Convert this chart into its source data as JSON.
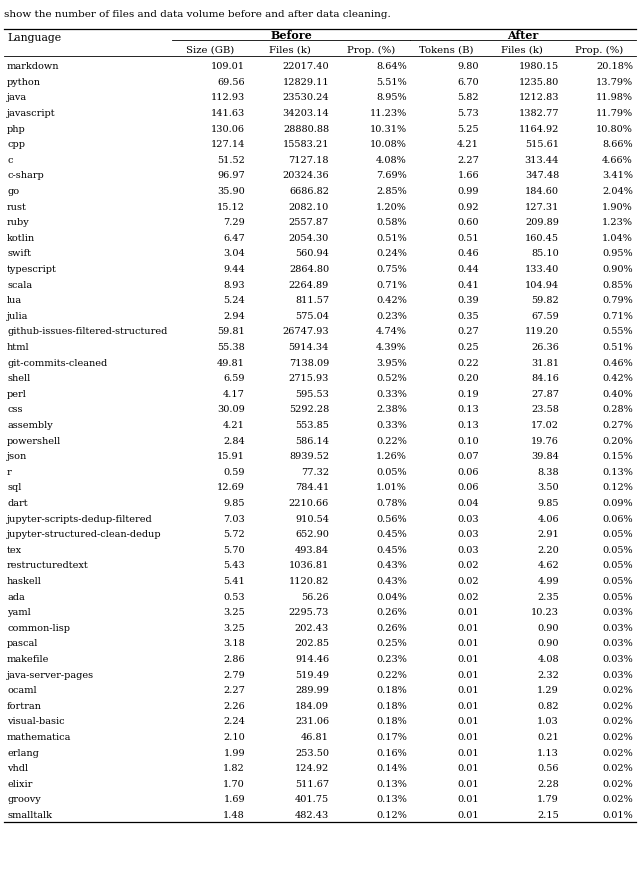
{
  "caption": "show the number of files and data volume before and after data cleaning.",
  "first_col_header": "Language",
  "before_header": "Before",
  "after_header": "After",
  "sub_headers": [
    "Size (GB)",
    "Files (k)",
    "Prop. (%)",
    "Tokens (B)",
    "Files (k)",
    "Prop. (%)"
  ],
  "rows": [
    [
      "markdown",
      "109.01",
      "22017.40",
      "8.64%",
      "9.80",
      "1980.15",
      "20.18%"
    ],
    [
      "python",
      "69.56",
      "12829.11",
      "5.51%",
      "6.70",
      "1235.80",
      "13.79%"
    ],
    [
      "java",
      "112.93",
      "23530.24",
      "8.95%",
      "5.82",
      "1212.83",
      "11.98%"
    ],
    [
      "javascript",
      "141.63",
      "34203.14",
      "11.23%",
      "5.73",
      "1382.77",
      "11.79%"
    ],
    [
      "php",
      "130.06",
      "28880.88",
      "10.31%",
      "5.25",
      "1164.92",
      "10.80%"
    ],
    [
      "cpp",
      "127.14",
      "15583.21",
      "10.08%",
      "4.21",
      "515.61",
      "8.66%"
    ],
    [
      "c",
      "51.52",
      "7127.18",
      "4.08%",
      "2.27",
      "313.44",
      "4.66%"
    ],
    [
      "c-sharp",
      "96.97",
      "20324.36",
      "7.69%",
      "1.66",
      "347.48",
      "3.41%"
    ],
    [
      "go",
      "35.90",
      "6686.82",
      "2.85%",
      "0.99",
      "184.60",
      "2.04%"
    ],
    [
      "rust",
      "15.12",
      "2082.10",
      "1.20%",
      "0.92",
      "127.31",
      "1.90%"
    ],
    [
      "ruby",
      "7.29",
      "2557.87",
      "0.58%",
      "0.60",
      "209.89",
      "1.23%"
    ],
    [
      "kotlin",
      "6.47",
      "2054.30",
      "0.51%",
      "0.51",
      "160.45",
      "1.04%"
    ],
    [
      "swift",
      "3.04",
      "560.94",
      "0.24%",
      "0.46",
      "85.10",
      "0.95%"
    ],
    [
      "typescript",
      "9.44",
      "2864.80",
      "0.75%",
      "0.44",
      "133.40",
      "0.90%"
    ],
    [
      "scala",
      "8.93",
      "2264.89",
      "0.71%",
      "0.41",
      "104.94",
      "0.85%"
    ],
    [
      "lua",
      "5.24",
      "811.57",
      "0.42%",
      "0.39",
      "59.82",
      "0.79%"
    ],
    [
      "julia",
      "2.94",
      "575.04",
      "0.23%",
      "0.35",
      "67.59",
      "0.71%"
    ],
    [
      "github-issues-filtered-structured",
      "59.81",
      "26747.93",
      "4.74%",
      "0.27",
      "119.20",
      "0.55%"
    ],
    [
      "html",
      "55.38",
      "5914.34",
      "4.39%",
      "0.25",
      "26.36",
      "0.51%"
    ],
    [
      "git-commits-cleaned",
      "49.81",
      "7138.09",
      "3.95%",
      "0.22",
      "31.81",
      "0.46%"
    ],
    [
      "shell",
      "6.59",
      "2715.93",
      "0.52%",
      "0.20",
      "84.16",
      "0.42%"
    ],
    [
      "perl",
      "4.17",
      "595.53",
      "0.33%",
      "0.19",
      "27.87",
      "0.40%"
    ],
    [
      "css",
      "30.09",
      "5292.28",
      "2.38%",
      "0.13",
      "23.58",
      "0.28%"
    ],
    [
      "assembly",
      "4.21",
      "553.85",
      "0.33%",
      "0.13",
      "17.02",
      "0.27%"
    ],
    [
      "powershell",
      "2.84",
      "586.14",
      "0.22%",
      "0.10",
      "19.76",
      "0.20%"
    ],
    [
      "json",
      "15.91",
      "8939.52",
      "1.26%",
      "0.07",
      "39.84",
      "0.15%"
    ],
    [
      "r",
      "0.59",
      "77.32",
      "0.05%",
      "0.06",
      "8.38",
      "0.13%"
    ],
    [
      "sql",
      "12.69",
      "784.41",
      "1.01%",
      "0.06",
      "3.50",
      "0.12%"
    ],
    [
      "dart",
      "9.85",
      "2210.66",
      "0.78%",
      "0.04",
      "9.85",
      "0.09%"
    ],
    [
      "jupyter-scripts-dedup-filtered",
      "7.03",
      "910.54",
      "0.56%",
      "0.03",
      "4.06",
      "0.06%"
    ],
    [
      "jupyter-structured-clean-dedup",
      "5.72",
      "652.90",
      "0.45%",
      "0.03",
      "2.91",
      "0.05%"
    ],
    [
      "tex",
      "5.70",
      "493.84",
      "0.45%",
      "0.03",
      "2.20",
      "0.05%"
    ],
    [
      "restructuredtext",
      "5.43",
      "1036.81",
      "0.43%",
      "0.02",
      "4.62",
      "0.05%"
    ],
    [
      "haskell",
      "5.41",
      "1120.82",
      "0.43%",
      "0.02",
      "4.99",
      "0.05%"
    ],
    [
      "ada",
      "0.53",
      "56.26",
      "0.04%",
      "0.02",
      "2.35",
      "0.05%"
    ],
    [
      "yaml",
      "3.25",
      "2295.73",
      "0.26%",
      "0.01",
      "10.23",
      "0.03%"
    ],
    [
      "common-lisp",
      "3.25",
      "202.43",
      "0.26%",
      "0.01",
      "0.90",
      "0.03%"
    ],
    [
      "pascal",
      "3.18",
      "202.85",
      "0.25%",
      "0.01",
      "0.90",
      "0.03%"
    ],
    [
      "makefile",
      "2.86",
      "914.46",
      "0.23%",
      "0.01",
      "4.08",
      "0.03%"
    ],
    [
      "java-server-pages",
      "2.79",
      "519.49",
      "0.22%",
      "0.01",
      "2.32",
      "0.03%"
    ],
    [
      "ocaml",
      "2.27",
      "289.99",
      "0.18%",
      "0.01",
      "1.29",
      "0.02%"
    ],
    [
      "fortran",
      "2.26",
      "184.09",
      "0.18%",
      "0.01",
      "0.82",
      "0.02%"
    ],
    [
      "visual-basic",
      "2.24",
      "231.06",
      "0.18%",
      "0.01",
      "1.03",
      "0.02%"
    ],
    [
      "mathematica",
      "2.10",
      "46.81",
      "0.17%",
      "0.01",
      "0.21",
      "0.02%"
    ],
    [
      "erlang",
      "1.99",
      "253.50",
      "0.16%",
      "0.01",
      "1.13",
      "0.02%"
    ],
    [
      "vhdl",
      "1.82",
      "124.92",
      "0.14%",
      "0.01",
      "0.56",
      "0.02%"
    ],
    [
      "elixir",
      "1.70",
      "511.67",
      "0.13%",
      "0.01",
      "2.28",
      "0.02%"
    ],
    [
      "groovy",
      "1.69",
      "401.75",
      "0.13%",
      "0.01",
      "1.79",
      "0.02%"
    ],
    [
      "smalltalk",
      "1.48",
      "482.43",
      "0.12%",
      "0.01",
      "2.15",
      "0.01%"
    ]
  ]
}
